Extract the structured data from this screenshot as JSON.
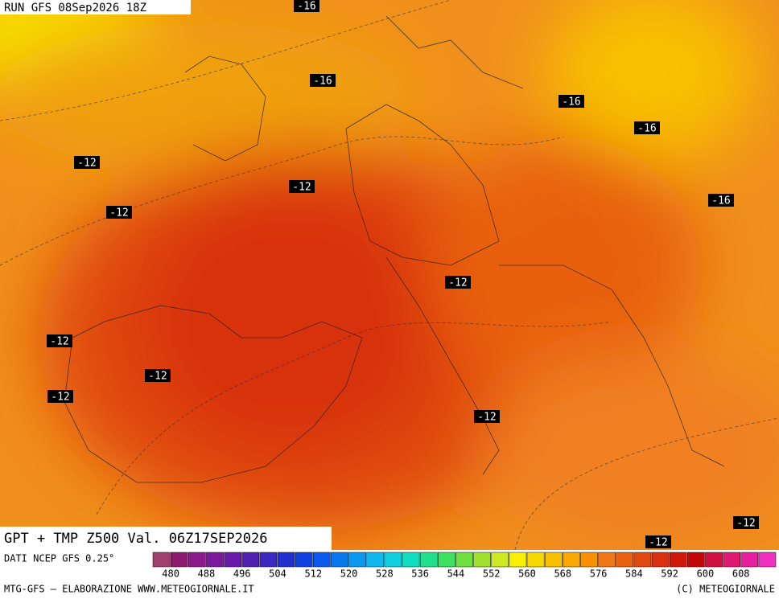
{
  "header": {
    "run": "RUN GFS 08Sep2026 18Z"
  },
  "map": {
    "title": "GPT + TMP Z500 Val. 06Z17SEP2026",
    "contour_labels": [
      "-16",
      "-16",
      "-16",
      "-16",
      "-12",
      "-12",
      "-12",
      "-16",
      "-12",
      "-12",
      "-12",
      "-12",
      "-12",
      "-12",
      "-12"
    ]
  },
  "footer": {
    "source": "DATI NCEP GFS 0.25°",
    "credit": "MTG-GFS — ELABORAZIONE WWW.METEOGIORNALE.IT",
    "copyright": "(C) METEOGIORNALE"
  },
  "colorbar": {
    "ticks": [
      480,
      488,
      496,
      504,
      512,
      520,
      528,
      536,
      544,
      552,
      560,
      568,
      576,
      584,
      592,
      600,
      608
    ],
    "colors": [
      "#a0406e",
      "#8a1a6e",
      "#8c1a8c",
      "#7a1a9a",
      "#6a1aa8",
      "#5020b0",
      "#3a28c0",
      "#2030d0",
      "#1040e0",
      "#0a5af0",
      "#0a78f0",
      "#0a98f0",
      "#10b8f0",
      "#10d0e0",
      "#10e0c0",
      "#20e090",
      "#40e060",
      "#70e040",
      "#a0e030",
      "#d0e820",
      "#f8f000",
      "#f8d800",
      "#f8c000",
      "#f8a800",
      "#f89000",
      "#f07818",
      "#e86010",
      "#e04810",
      "#d83010",
      "#d01808",
      "#c00808",
      "#d01040",
      "#e01870",
      "#e820a0",
      "#f030c0"
    ]
  }
}
